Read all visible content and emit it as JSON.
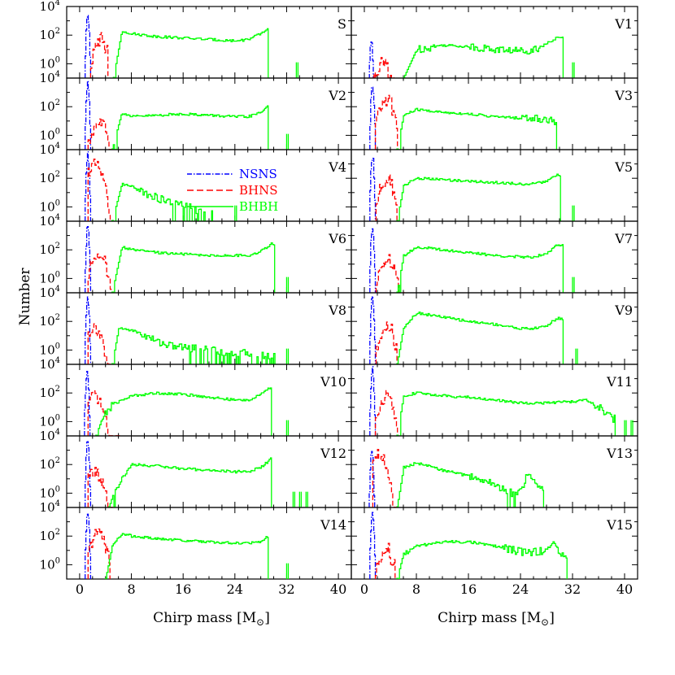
{
  "chart_data": {
    "type": "line",
    "grid": false,
    "xlabel": "Chirp mass [M",
    "xlabel_sub": "⊙",
    "xlabel_end": "]",
    "ylabel": "Number",
    "xlim": [
      -2,
      42
    ],
    "ylim_log10": [
      -1,
      4
    ],
    "x_ticks": [
      0,
      8,
      16,
      24,
      32,
      40
    ],
    "y_ticks": [
      {
        "base": "10",
        "exp": "4",
        "log10": 4
      },
      {
        "base": "10",
        "exp": "2",
        "log10": 2
      },
      {
        "base": "10",
        "exp": "0",
        "log10": 0
      }
    ],
    "legend": {
      "placement": "panel V4, upper-middle",
      "entries": [
        {
          "name": "NSNS",
          "color": "#0000ff",
          "dash": "dashdot"
        },
        {
          "name": "BHNS",
          "color": "#ff0000",
          "dash": "dashed"
        },
        {
          "name": "BHBH",
          "color": "#00ff00",
          "dash": "solid"
        }
      ]
    },
    "panels": [
      {
        "label": "S",
        "nsns": [
          1.2,
          3.4
        ],
        "bhns": [
          3.5,
          1.8,
          4.4
        ],
        "bhbh": {
          "start": 5.2,
          "x": [
            6.5,
            8,
            12,
            16,
            20,
            24,
            26,
            28,
            29.5
          ],
          "y": [
            2.3,
            2.1,
            1.9,
            1.8,
            1.7,
            1.6,
            1.7,
            2.1,
            2.6
          ],
          "end": 29.0,
          "tail": [
            33.5
          ]
        }
      },
      {
        "label": "V1",
        "nsns": [
          1.0,
          1.6
        ],
        "bhns": [
          3.0,
          0.2,
          4.4
        ],
        "bhbh": {
          "start": 6.0,
          "x": [
            8,
            12,
            16,
            20,
            24,
            26,
            28,
            29.5
          ],
          "y": [
            1.0,
            1.3,
            1.2,
            1.0,
            0.9,
            1.0,
            1.4,
            1.8
          ],
          "end": 30.5,
          "tail": [
            32.0
          ]
        }
      },
      {
        "label": "V2",
        "nsns": [
          1.2,
          3.6
        ],
        "bhns": [
          3.0,
          0.9,
          5.2
        ],
        "bhbh": {
          "start": 5.0,
          "x": [
            6.5,
            8,
            12,
            16,
            20,
            24,
            26,
            28,
            29.5
          ],
          "y": [
            1.6,
            1.3,
            1.4,
            1.5,
            1.4,
            1.3,
            1.3,
            1.6,
            2.3
          ],
          "end": 29.0,
          "tail": [
            32.0
          ]
        }
      },
      {
        "label": "V3",
        "nsns": [
          1.2,
          3.6
        ],
        "bhns": [
          3.5,
          2.5,
          5.0
        ],
        "bhbh": {
          "start": 5.0,
          "x": [
            6,
            8,
            12,
            16,
            20,
            24,
            26,
            28,
            29.5
          ],
          "y": [
            1.4,
            1.8,
            1.6,
            1.5,
            1.3,
            1.2,
            1.2,
            1.1,
            1.0
          ],
          "end": 29.5,
          "tail": []
        }
      },
      {
        "label": "V4",
        "nsns": [
          1.2,
          3.7
        ],
        "bhns": [
          2.2,
          2.9,
          5.0
        ],
        "bhbh": {
          "start": 5.0,
          "x": [
            6.5,
            8,
            10,
            12,
            14,
            16,
            18,
            20
          ],
          "y": [
            1.6,
            1.4,
            1.0,
            0.6,
            0.3,
            0.1,
            -0.2,
            -0.5
          ],
          "end": 20.5,
          "tail": [
            24.0
          ]
        }
      },
      {
        "label": "V5",
        "nsns": [
          1.2,
          3.6
        ],
        "bhns": [
          3.6,
          2.0,
          5.0
        ],
        "bhbh": {
          "start": 5.0,
          "x": [
            6,
            8,
            12,
            16,
            20,
            24,
            26,
            28,
            29.5
          ],
          "y": [
            1.5,
            2.0,
            1.9,
            1.8,
            1.7,
            1.6,
            1.6,
            1.8,
            2.2
          ],
          "end": 30.0,
          "tail": [
            32.0
          ]
        }
      },
      {
        "label": "V6",
        "nsns": [
          1.2,
          3.6
        ],
        "bhns": [
          3.0,
          1.8,
          4.8
        ],
        "bhbh": {
          "start": 5.0,
          "x": [
            6.5,
            8,
            12,
            16,
            20,
            24,
            26,
            28,
            29.5
          ],
          "y": [
            2.2,
            2.0,
            1.8,
            1.7,
            1.6,
            1.6,
            1.6,
            1.9,
            2.4
          ],
          "end": 30.0,
          "tail": [
            32.0
          ]
        }
      },
      {
        "label": "V7",
        "nsns": [
          1.2,
          3.6
        ],
        "bhns": [
          3.6,
          1.3,
          6.0
        ],
        "bhbh": {
          "start": 5.0,
          "x": [
            6,
            8,
            12,
            16,
            20,
            24,
            26,
            28,
            29.5
          ],
          "y": [
            1.6,
            2.2,
            2.0,
            1.8,
            1.6,
            1.5,
            1.5,
            1.8,
            2.3
          ],
          "end": 30.5,
          "tail": [
            32.0
          ]
        }
      },
      {
        "label": "V8",
        "nsns": [
          1.2,
          3.7
        ],
        "bhns": [
          2.2,
          1.6,
          4.6
        ],
        "bhbh": {
          "start": 5.0,
          "x": [
            6,
            8,
            10,
            12,
            14,
            16,
            20,
            24,
            28,
            30
          ],
          "y": [
            1.5,
            1.4,
            1.0,
            0.6,
            0.3,
            0.2,
            0.0,
            -0.2,
            -0.3,
            -0.4
          ],
          "end": 30.5,
          "tail": [
            32.0
          ]
        }
      },
      {
        "label": "V9",
        "nsns": [
          1.2,
          3.6
        ],
        "bhns": [
          3.6,
          1.6,
          5.0
        ],
        "bhbh": {
          "start": 5.0,
          "x": [
            6,
            8,
            12,
            16,
            20,
            24,
            26,
            28,
            29.5
          ],
          "y": [
            1.6,
            2.6,
            2.3,
            2.0,
            1.8,
            1.5,
            1.5,
            1.7,
            2.2
          ],
          "end": 30.5,
          "tail": [
            32.5
          ]
        }
      },
      {
        "label": "V10",
        "nsns": [
          1.1,
          3.4
        ],
        "bhns": [
          2.2,
          1.7,
          6.0
        ],
        "bhbh": {
          "start": 2.5,
          "x": [
            3.5,
            5,
            8,
            12,
            16,
            20,
            24,
            26,
            28,
            29.5
          ],
          "y": [
            0.3,
            1.2,
            1.8,
            2.0,
            1.9,
            1.7,
            1.5,
            1.5,
            1.9,
            2.4
          ],
          "end": 29.5,
          "tail": [
            32.0
          ]
        }
      },
      {
        "label": "V11",
        "nsns": [
          1.2,
          3.6
        ],
        "bhns": [
          3.5,
          1.8,
          5.0
        ],
        "bhbh": {
          "start": 5.0,
          "x": [
            6,
            8,
            12,
            16,
            20,
            24,
            28,
            32,
            34,
            36,
            38
          ],
          "y": [
            1.8,
            2.0,
            1.8,
            1.7,
            1.5,
            1.3,
            1.3,
            1.4,
            1.5,
            1.0,
            0.2
          ],
          "end": 38.5,
          "tail": [
            40.0,
            41.0
          ]
        }
      },
      {
        "label": "V12",
        "nsns": [
          1.2,
          3.6
        ],
        "bhns": [
          2.2,
          1.5,
          5.0
        ],
        "bhbh": {
          "start": 4.5,
          "x": [
            5.5,
            6.5,
            8,
            12,
            16,
            20,
            24,
            26,
            28,
            29.5
          ],
          "y": [
            0.4,
            1.0,
            2.0,
            1.9,
            1.7,
            1.6,
            1.5,
            1.5,
            1.8,
            2.4
          ],
          "end": 29.5,
          "tail": [
            33.0,
            34.0,
            35.0
          ]
        }
      },
      {
        "label": "V13",
        "nsns": [
          1.1,
          2.8
        ],
        "bhns": [
          2.0,
          2.8,
          5.0
        ],
        "bhbh": {
          "start": 5.0,
          "x": [
            6,
            8,
            12,
            16,
            20,
            22,
            24,
            25,
            26,
            27
          ],
          "y": [
            1.8,
            2.1,
            1.6,
            1.2,
            0.6,
            0.0,
            0.1,
            1.3,
            1.1,
            0.4
          ],
          "end": 27.5,
          "tail": []
        }
      },
      {
        "label": "V14",
        "nsns": [
          1.2,
          3.7
        ],
        "bhns": [
          3.0,
          2.3,
          4.6
        ],
        "bhbh": {
          "start": 4.0,
          "x": [
            5,
            6.5,
            8,
            12,
            16,
            20,
            24,
            26,
            28,
            29
          ],
          "y": [
            1.3,
            2.2,
            2.0,
            1.8,
            1.7,
            1.6,
            1.5,
            1.5,
            1.6,
            2.0
          ],
          "end": 29.0,
          "tail": [
            32.0
          ]
        }
      },
      {
        "label": "V15",
        "nsns": [
          1.2,
          3.6
        ],
        "bhns": [
          3.5,
          1.2,
          4.6
        ],
        "bhbh": {
          "start": 5.0,
          "x": [
            6,
            8,
            12,
            16,
            20,
            22,
            24,
            26,
            28,
            29,
            30
          ],
          "y": [
            0.8,
            1.3,
            1.6,
            1.6,
            1.3,
            1.1,
            0.9,
            0.9,
            1.0,
            1.6,
            0.7
          ],
          "end": 31.0,
          "tail": []
        }
      }
    ]
  }
}
